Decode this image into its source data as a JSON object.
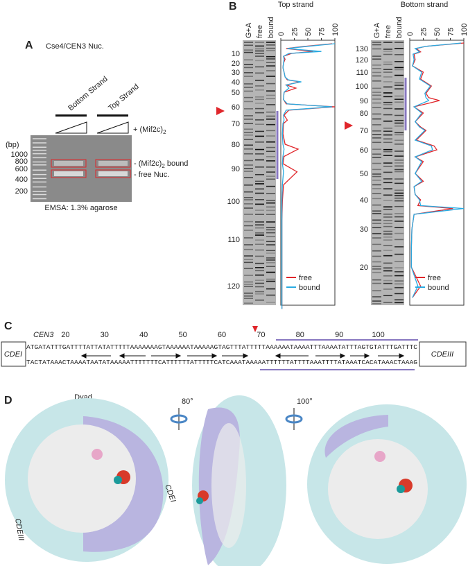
{
  "panel_a": {
    "label": "A",
    "title": "Cse4/CEN3 Nuc.",
    "lanes": [
      "Bottom Strand",
      "Top Strand"
    ],
    "titrant": [
      "+ (Mif2c)",
      "2"
    ],
    "ladder_unit": "(bp)",
    "ladder": [
      "1000",
      "800",
      "600",
      "400",
      "200"
    ],
    "bands": [
      [
        "- (Mif2c)",
        "2",
        " bound"
      ],
      [
        "- free Nuc."
      ]
    ],
    "caption": "EMSA: 1.3% agarose"
  },
  "panel_b": {
    "label": "B",
    "charts": [
      {
        "type": "line",
        "title": "Top strand",
        "lanes": [
          "G+A",
          "free",
          "bound"
        ],
        "positions": [
          0,
          3,
          5,
          8,
          10,
          13,
          16,
          20,
          25,
          30,
          35,
          38,
          40,
          43,
          46,
          50,
          55,
          58,
          60,
          62,
          65,
          68,
          70,
          75,
          80,
          82,
          85,
          88,
          91,
          95,
          100,
          105,
          110,
          115,
          120,
          125
        ],
        "ticks": [
          10,
          20,
          30,
          40,
          50,
          60,
          70,
          80,
          90,
          100,
          110,
          120
        ],
        "xlim": [
          0,
          100
        ],
        "xticks": [
          0,
          25,
          50,
          75,
          100
        ],
        "series": [
          {
            "name": "free",
            "color": "#e0262b",
            "values": [
              95,
              40,
              10,
              60,
              20,
              5,
              8,
              5,
              4,
              6,
              8,
              12,
              35,
              10,
              28,
              6,
              5,
              10,
              100,
              15,
              6,
              12,
              5,
              4,
              8,
              32,
              6,
              4,
              30,
              5,
              3,
              2,
              2,
              2,
              2,
              2
            ]
          },
          {
            "name": "bound",
            "color": "#29abe2",
            "values": [
              100,
              45,
              12,
              75,
              15,
              5,
              6,
              5,
              4,
              6,
              8,
              14,
              38,
              10,
              15,
              6,
              5,
              12,
              95,
              10,
              5,
              6,
              4,
              3,
              4,
              6,
              4,
              3,
              5,
              3,
              2,
              2,
              2,
              2,
              2,
              2
            ]
          }
        ]
      },
      {
        "type": "line",
        "title": "Bottom strand",
        "lanes": [
          "G+A",
          "free",
          "bound"
        ],
        "positions": [
          135,
          132,
          130,
          127,
          125,
          120,
          115,
          110,
          105,
          100,
          95,
          92,
          90,
          85,
          80,
          75,
          72,
          70,
          65,
          62,
          60,
          57,
          55,
          50,
          47,
          45,
          42,
          40,
          38,
          37,
          35,
          30,
          25,
          20,
          15,
          12
        ],
        "ticks": [
          130,
          120,
          110,
          100,
          90,
          80,
          70,
          60,
          50,
          40,
          30,
          20
        ],
        "xlim": [
          0,
          100
        ],
        "xticks": [
          0,
          25,
          50,
          75,
          100
        ],
        "series": [
          {
            "name": "free",
            "color": "#e0262b",
            "values": [
              100,
              30,
              12,
              20,
              8,
              10,
              5,
              25,
              20,
              40,
              30,
              35,
              55,
              8,
              25,
              10,
              20,
              30,
              12,
              45,
              50,
              10,
              25,
              10,
              25,
              8,
              10,
              20,
              15,
              80,
              8,
              4,
              3,
              3,
              20,
              5
            ]
          },
          {
            "name": "bound",
            "color": "#29abe2",
            "values": [
              95,
              30,
              10,
              18,
              6,
              8,
              5,
              22,
              18,
              38,
              28,
              30,
              35,
              8,
              22,
              10,
              18,
              28,
              10,
              40,
              42,
              10,
              22,
              10,
              22,
              8,
              10,
              18,
              20,
              100,
              8,
              4,
              3,
              3,
              15,
              5
            ]
          }
        ]
      }
    ]
  },
  "panel_c": {
    "label": "C",
    "name": "CEN3",
    "ticks": [
      20,
      30,
      40,
      50,
      60,
      70,
      80,
      90,
      100
    ],
    "left_element": "CDEI",
    "right_element": "CDEIII",
    "top_strand": "ATGATATTTGATTTTATTATATTTTTAAAAAAAGTAAAAAATAAAAAGTAGTTTATTTTTAAAAAATAAAATTTAAAATATTTAGTGTATTTGATTTC",
    "bottom_strand": "TACTATAAACTAAAATAATATAAAAATTTTTTTCATTTTTTATTTTTCATCAAATAAAAATTTTTTATTTTAAATTTTATAAATCACATAAACTAAAG"
  },
  "panel_d": {
    "label": "D",
    "dyad": "Dyad",
    "rotations": [
      "80°",
      "100°"
    ],
    "elements": [
      "CDEI",
      "CDEIII"
    ]
  }
}
